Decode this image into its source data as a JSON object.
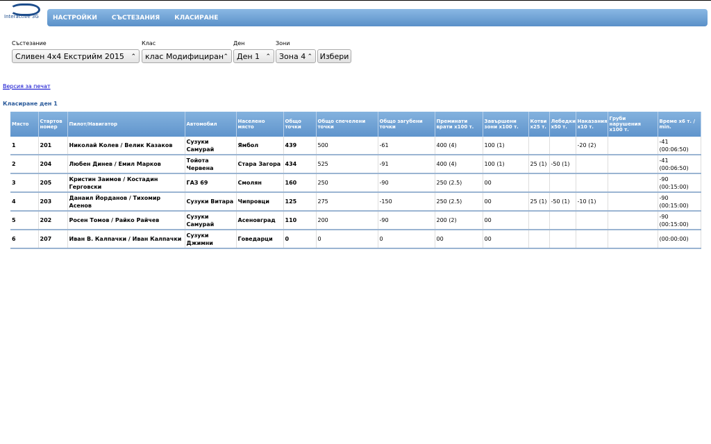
{
  "logo": "Interactive 3G",
  "nav": [
    "НАСТРОЙКИ",
    "СЪСТЕЗАНИЯ",
    "КЛАСИРАНЕ"
  ],
  "filters": [
    {
      "label": "Състезание",
      "value": "Сливен 4х4 Екстрийм 2015"
    },
    {
      "label": "Клас",
      "value": "клас Модифициран"
    },
    {
      "label": "Ден",
      "value": "Ден 1"
    },
    {
      "label": "Зони",
      "value": "Зона 4"
    }
  ],
  "button": "Избери",
  "print_link": "Версия за печат",
  "heading": "Класиране ден 1",
  "table": {
    "columns": [
      "Място",
      "Стартов номер",
      "Пилот/Навигатор",
      "Автомобил",
      "Населено място",
      "Общо точки",
      "Общо спечелени точки",
      "Общо загубени точки",
      "Преминати врати x100 т.",
      "Завършени зони x100 т.",
      "Котви x25 т.",
      "Лебедки x50 т.",
      "Наказания x10 т.",
      "Груби нарушения x100 т.",
      "Време x6 т. / min."
    ],
    "rows": [
      [
        "1",
        "201",
        "Николай Колев / Велик Казаков",
        "Сузуки Самурай",
        "Ямбол",
        "439",
        "500",
        "-61",
        "400 (4)",
        "100 (1)",
        "",
        "",
        "-20 (2)",
        "",
        "-41 (00:06:50)"
      ],
      [
        "2",
        "204",
        "Любен Динев / Емил Марков",
        "Тойота Червена",
        "Стара Загора",
        "434",
        "525",
        "-91",
        "400 (4)",
        "100 (1)",
        "25 (1)",
        "-50 (1)",
        "",
        "",
        "-41 (00:06:50)"
      ],
      [
        "3",
        "205",
        "Кристин Заимов / Костадин Герговски",
        "ГАЗ 69",
        "Смолян",
        "160",
        "250",
        "-90",
        "250 (2.5)",
        "00",
        "",
        "",
        "",
        "",
        "-90 (00:15:00)"
      ],
      [
        "4",
        "203",
        "Данаил Йорданов / Тихомир Асенов",
        "Сузуки Витара",
        "Чипровци",
        "125",
        "275",
        "-150",
        "250 (2.5)",
        "00",
        "25 (1)",
        "-50 (1)",
        "-10 (1)",
        "",
        "-90 (00:15:00)"
      ],
      [
        "5",
        "202",
        "Росен Томов / Райко Райчев",
        "Сузуки Самурай",
        "Асеновград",
        "110",
        "200",
        "-90",
        "200 (2)",
        "00",
        "",
        "",
        "",
        "",
        "-90 (00:15:00)"
      ],
      [
        "6",
        "207",
        "Иван В. Калпачки / Иван Калпачки",
        "Сузуки Джимни",
        "Говедарци",
        "0",
        "0",
        "0",
        "00",
        "00",
        "",
        "",
        "",
        "",
        "(00:00:00)"
      ]
    ]
  }
}
